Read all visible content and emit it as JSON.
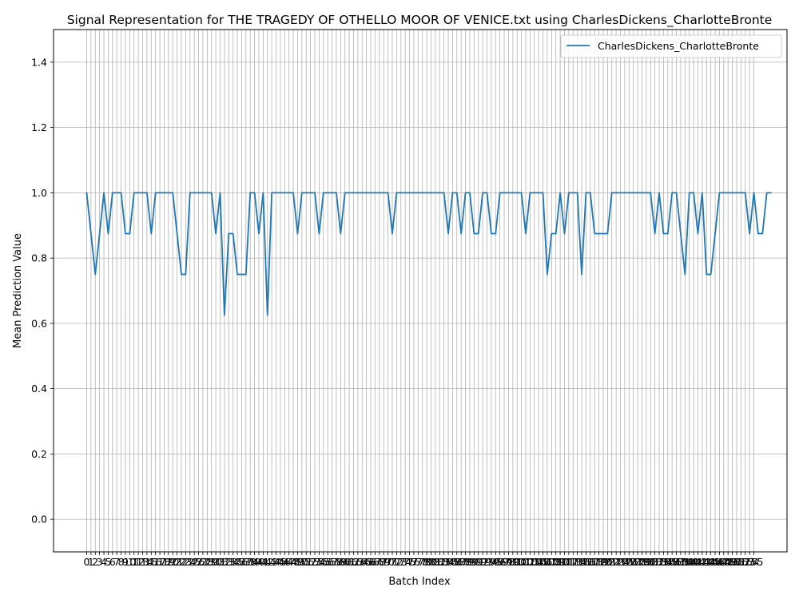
{
  "chart_data": {
    "type": "line",
    "title": "Signal Representation for THE TRAGEDY OF OTHELLO MOOR OF VENICE.txt using CharlesDickens_CharlotteBronte",
    "xlabel": "Batch Index",
    "ylabel": "Mean Prediction Value",
    "xlim": [
      -7.7,
      162.7
    ],
    "ylim": [
      -0.1,
      1.5
    ],
    "yticks": [
      0.0,
      0.2,
      0.4,
      0.6,
      0.8,
      1.0,
      1.2,
      1.4
    ],
    "ytick_labels": [
      "0.0",
      "0.2",
      "0.4",
      "0.6",
      "0.8",
      "1.0",
      "1.2",
      "1.4"
    ],
    "x_tick_start": 0,
    "x_tick_end": 155,
    "grid": true,
    "legend_position": "top-right",
    "line_color": "#1f77b4",
    "series": [
      {
        "name": "CharlesDickens_CharlotteBronte",
        "values": [
          1.0,
          0.875,
          0.75,
          0.875,
          1.0,
          0.875,
          1.0,
          1.0,
          1.0,
          0.875,
          0.875,
          1.0,
          1.0,
          1.0,
          1.0,
          0.875,
          1.0,
          1.0,
          1.0,
          1.0,
          1.0,
          0.875,
          0.75,
          0.75,
          1.0,
          1.0,
          1.0,
          1.0,
          1.0,
          1.0,
          0.875,
          1.0,
          0.625,
          0.875,
          0.875,
          0.75,
          0.75,
          0.75,
          1.0,
          1.0,
          0.875,
          1.0,
          0.625,
          1.0,
          1.0,
          1.0,
          1.0,
          1.0,
          1.0,
          0.875,
          1.0,
          1.0,
          1.0,
          1.0,
          0.875,
          1.0,
          1.0,
          1.0,
          1.0,
          0.875,
          1.0,
          1.0,
          1.0,
          1.0,
          1.0,
          1.0,
          1.0,
          1.0,
          1.0,
          1.0,
          1.0,
          0.875,
          1.0,
          1.0,
          1.0,
          1.0,
          1.0,
          1.0,
          1.0,
          1.0,
          1.0,
          1.0,
          1.0,
          1.0,
          0.875,
          1.0,
          1.0,
          0.875,
          1.0,
          1.0,
          0.875,
          0.875,
          1.0,
          1.0,
          0.875,
          0.875,
          1.0,
          1.0,
          1.0,
          1.0,
          1.0,
          1.0,
          0.875,
          1.0,
          1.0,
          1.0,
          1.0,
          0.75,
          0.875,
          0.875,
          1.0,
          0.875,
          1.0,
          1.0,
          1.0,
          0.75,
          1.0,
          1.0,
          0.875,
          0.875,
          0.875,
          0.875,
          1.0,
          1.0,
          1.0,
          1.0,
          1.0,
          1.0,
          1.0,
          1.0,
          1.0,
          1.0,
          0.875,
          1.0,
          0.875,
          0.875,
          1.0,
          1.0,
          0.875,
          0.75,
          1.0,
          1.0,
          0.875,
          1.0,
          0.75,
          0.75,
          0.875,
          1.0,
          1.0,
          1.0,
          1.0,
          1.0,
          1.0,
          1.0,
          0.875,
          1.0,
          0.875,
          0.875,
          1.0,
          1.0
        ]
      }
    ]
  }
}
